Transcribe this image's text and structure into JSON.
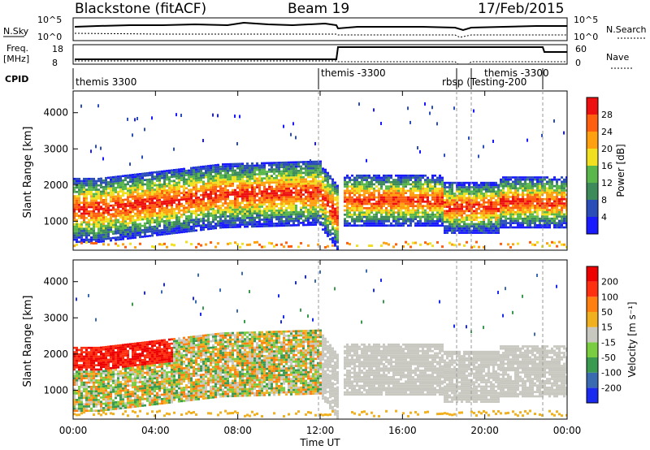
{
  "header": {
    "station": "Blackstone (fitACF)",
    "beam": "Beam 19",
    "date": "17/Feb/2015"
  },
  "summary_panels": {
    "nsky_label": "N.Sky",
    "nsky_ticks": [
      "10^5",
      "10^0"
    ],
    "nsearch_label": "N.Search",
    "nsearch_ticks": [
      "10^5",
      "10^0"
    ],
    "freq_label_1": "Freq.",
    "freq_label_2": "[MHz]",
    "freq_ticks": [
      "18",
      "8"
    ],
    "nave_label": "Nave",
    "nave_ticks": [
      "60",
      "0"
    ],
    "cpid_label": "CPID",
    "cpid_entries": [
      "themis 3300",
      "themis -3300",
      "rbsp (Testing-200",
      "themis -3300"
    ]
  },
  "chart_data": [
    {
      "type": "heatmap",
      "name": "power",
      "ylabel": "Slant Range [km]",
      "y_ticks": [
        "1000",
        "2000",
        "3000",
        "4000"
      ],
      "ylim": [
        200,
        4600
      ],
      "colorbar_label": "Power [dB]",
      "colorbar_ticks": [
        "4",
        "8",
        "12",
        "16",
        "20",
        "24",
        "28"
      ],
      "colorbar_colors": [
        "#1a1aff",
        "#2a4db8",
        "#3d8a5a",
        "#5ab84a",
        "#f0e020",
        "#ffa010",
        "#ff6010",
        "#ee1010"
      ]
    },
    {
      "type": "heatmap",
      "name": "velocity",
      "ylabel": "Slant Range [km]",
      "y_ticks": [
        "1000",
        "2000",
        "3000",
        "4000"
      ],
      "ylim": [
        200,
        4600
      ],
      "colorbar_label": "Velocity [m s⁻¹]",
      "colorbar_ticks": [
        "200",
        "100",
        "50",
        "15",
        "-15",
        "-50",
        "-100",
        "-200"
      ],
      "colorbar_colors": [
        "#1a2aee",
        "#3a6ab0",
        "#3a9a50",
        "#7acc40",
        "#c8c8c0",
        "#f0b020",
        "#ff8010",
        "#ff3010",
        "#ee0000"
      ]
    }
  ],
  "x_ticks": [
    "00:00",
    "04:00",
    "08:00",
    "12:00",
    "16:00",
    "20:00",
    "00:00"
  ],
  "x_label": "Time UT"
}
